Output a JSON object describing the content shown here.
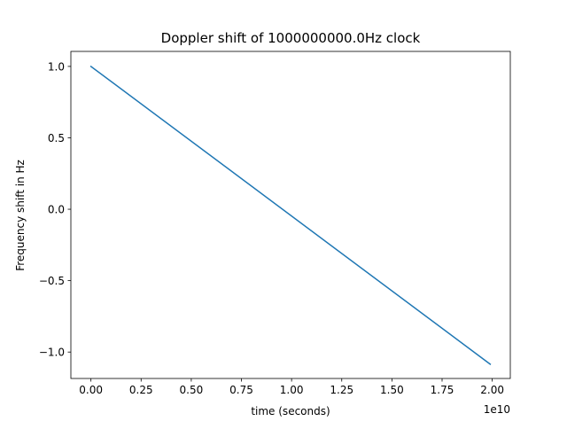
{
  "chart_data": {
    "type": "line",
    "title": "Doppler shift of 1000000000.0Hz clock",
    "xlabel": "time (seconds)",
    "ylabel": "Frequency shift in Hz",
    "x_offset_label": "1e10",
    "xlim": [
      -1000000000.0,
      20900000000.0
    ],
    "ylim": [
      -1.185,
      1.105
    ],
    "xticks": [
      0,
      2500000000.0,
      5000000000.0,
      7500000000.0,
      10000000000.0,
      12500000000.0,
      15000000000.0,
      17500000000.0,
      20000000000.0
    ],
    "xtick_labels": [
      "0.00",
      "0.25",
      "0.50",
      "0.75",
      "1.00",
      "1.25",
      "1.50",
      "1.75",
      "2.00"
    ],
    "yticks": [
      1.0,
      0.5,
      0.0,
      -0.5,
      -1.0
    ],
    "ytick_labels": [
      "1.0",
      "0.5",
      "0.0",
      "−0.5",
      "−1.0"
    ],
    "grid": false,
    "series": [
      {
        "color": "#1f77b4",
        "x": [
          0,
          19900000000.0
        ],
        "y": [
          1.0,
          -1.085
        ]
      }
    ]
  }
}
